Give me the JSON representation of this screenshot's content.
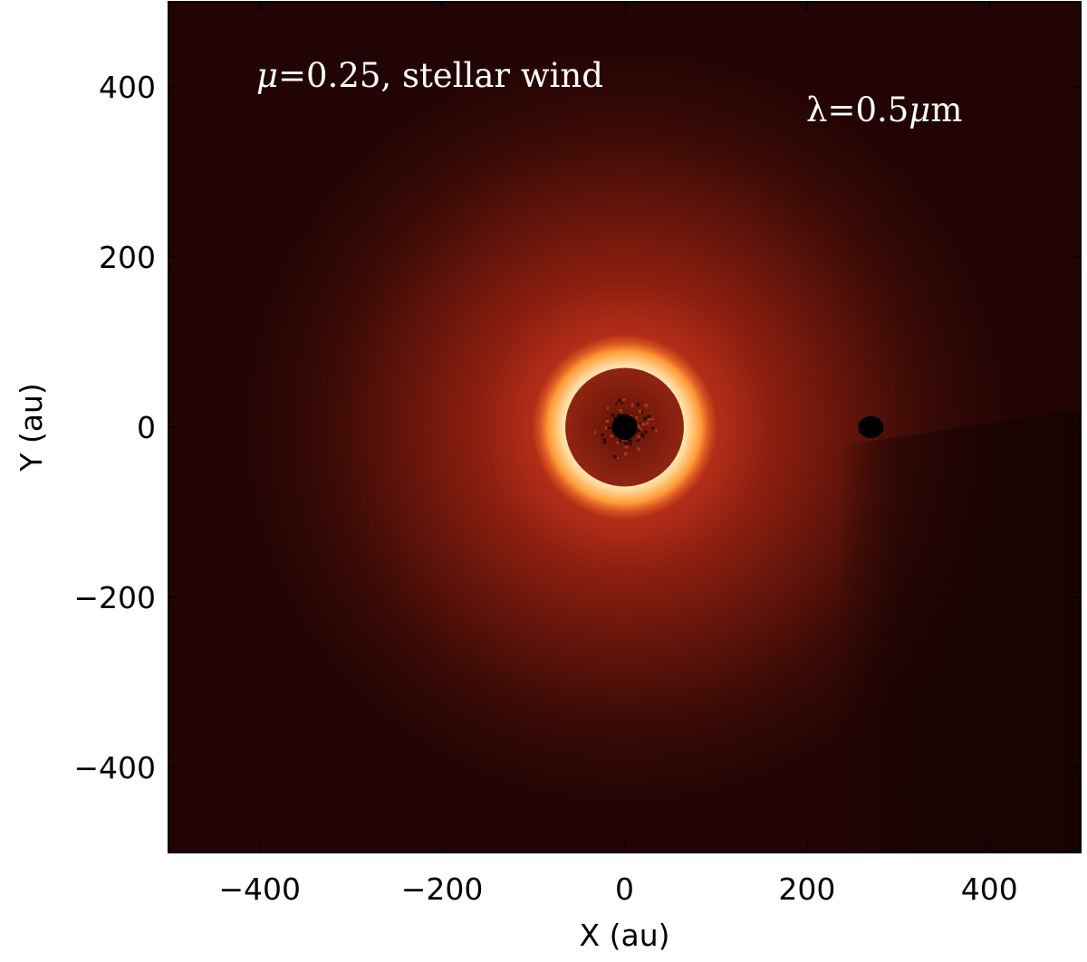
{
  "chart_data": {
    "type": "heatmap",
    "title": "",
    "xlabel": "X (au)",
    "ylabel": "Y (au)",
    "xlim": [
      -500,
      500
    ],
    "ylim": [
      -500,
      500
    ],
    "xticks": [
      -400,
      -200,
      0,
      200,
      400
    ],
    "yticks": [
      -400,
      -200,
      0,
      200,
      400
    ],
    "x_tick_labels": [
      "−400",
      "−200",
      "0",
      "200",
      "400"
    ],
    "y_tick_labels": [
      "−400",
      "−200",
      "0",
      "200",
      "400"
    ],
    "grid": false,
    "colormap": "black-red-yellow-white (heat)",
    "annotations": {
      "mu_symbol": "μ",
      "mu_rest": "=0.25, stellar wind",
      "lambda_prefix": "λ=0.5",
      "lambda_mu": "μ",
      "lambda_unit": "m"
    },
    "features": {
      "star_position": [
        0,
        0
      ],
      "bright_ring_radius_au": [
        65,
        100
      ],
      "inner_cavity_radius_au": 65,
      "planet_position": [
        270,
        0
      ]
    }
  },
  "colors": {
    "background": "#220404",
    "ring_bright": "#fff0c8",
    "ring_orange": "#ff8a20",
    "cavity": "#7a1a0c",
    "shadow": "#140202"
  }
}
